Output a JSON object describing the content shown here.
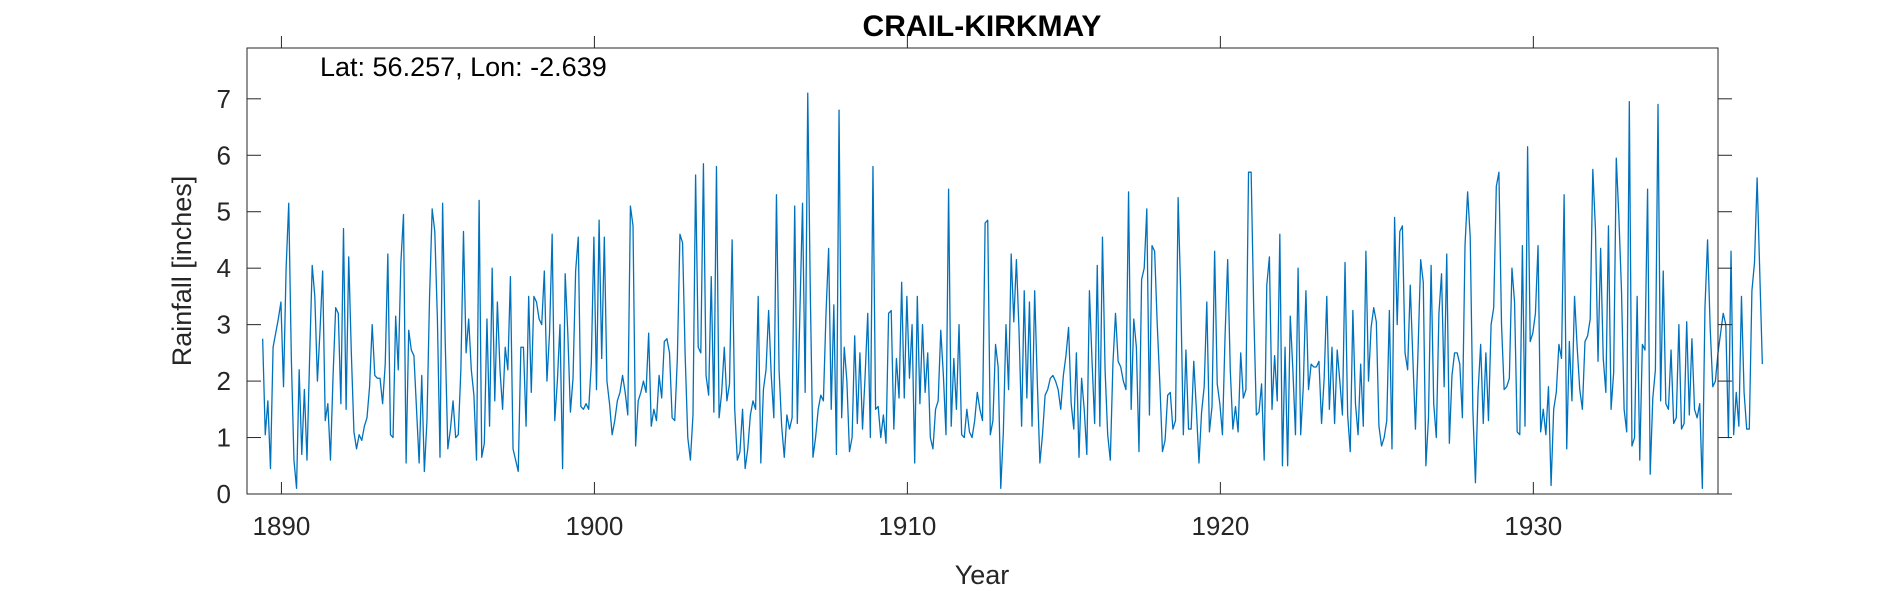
{
  "chart_data": {
    "type": "line",
    "title": "CRAIL-KIRKMAY",
    "annotation": "Lat: 56.257, Lon: -2.639",
    "xlabel": "Year",
    "ylabel": "Rainfall [inches]",
    "xlim": [
      1888.9,
      1935.9
    ],
    "ylim": [
      0,
      7.9
    ],
    "xticks": [
      1890,
      1900,
      1910,
      1920,
      1930
    ],
    "yticks": [
      0,
      1,
      2,
      3,
      4,
      5,
      6,
      7
    ],
    "grid": false,
    "series": [
      {
        "color": "#0072BD",
        "start_year": 1889.4,
        "step_years": 0.0833333,
        "values": [
          2.75,
          1.05,
          1.65,
          0.45,
          2.6,
          2.85,
          3.1,
          3.4,
          1.9,
          4.0,
          5.15,
          2.4,
          0.6,
          0.1,
          2.2,
          0.7,
          1.85,
          0.6,
          2.4,
          4.05,
          3.5,
          2.0,
          2.9,
          3.95,
          1.3,
          1.6,
          0.6,
          2.1,
          3.3,
          3.2,
          1.6,
          4.7,
          1.5,
          4.2,
          2.5,
          1.1,
          0.8,
          1.05,
          0.95,
          1.2,
          1.35,
          1.9,
          3.0,
          2.1,
          2.05,
          2.05,
          1.6,
          2.3,
          4.25,
          1.05,
          1.0,
          3.15,
          2.2,
          4.1,
          4.95,
          0.55,
          2.9,
          2.55,
          2.45,
          1.5,
          0.55,
          2.1,
          0.4,
          1.3,
          3.5,
          5.05,
          4.65,
          3.1,
          0.65,
          5.15,
          2.7,
          0.8,
          1.15,
          1.65,
          1.0,
          1.05,
          2.2,
          4.65,
          2.5,
          3.1,
          2.2,
          1.75,
          0.6,
          5.2,
          0.65,
          0.9,
          3.1,
          1.2,
          4.0,
          1.65,
          3.4,
          2.2,
          1.5,
          2.6,
          2.2,
          3.85,
          0.8,
          0.6,
          0.4,
          2.6,
          2.6,
          1.2,
          3.5,
          1.8,
          3.5,
          3.4,
          3.1,
          3.0,
          3.95,
          2.0,
          2.85,
          4.6,
          1.3,
          2.0,
          3.0,
          0.45,
          3.9,
          2.85,
          1.45,
          2.05,
          3.95,
          4.55,
          1.55,
          1.5,
          1.6,
          1.5,
          2.3,
          4.55,
          1.85,
          4.85,
          2.4,
          4.55,
          2.0,
          1.6,
          1.05,
          1.3,
          1.65,
          1.8,
          2.1,
          1.8,
          1.4,
          5.1,
          4.75,
          0.85,
          1.65,
          1.8,
          2.0,
          1.8,
          2.85,
          1.2,
          1.5,
          1.3,
          2.1,
          1.7,
          2.7,
          2.75,
          2.5,
          1.35,
          1.3,
          2.4,
          4.6,
          4.45,
          2.45,
          1.0,
          0.6,
          1.4,
          5.65,
          2.6,
          2.5,
          5.85,
          2.1,
          1.75,
          3.85,
          1.45,
          5.8,
          1.35,
          1.8,
          2.6,
          1.65,
          1.95,
          4.5,
          1.5,
          0.6,
          0.75,
          1.5,
          0.45,
          0.8,
          1.4,
          1.65,
          1.5,
          3.5,
          0.55,
          1.85,
          2.2,
          3.25,
          2.1,
          1.35,
          5.3,
          2.2,
          1.2,
          0.65,
          1.4,
          1.15,
          1.35,
          5.1,
          1.25,
          3.25,
          5.15,
          1.8,
          7.1,
          3.5,
          0.65,
          1.0,
          1.5,
          1.75,
          1.65,
          3.2,
          4.35,
          1.5,
          3.35,
          0.7,
          6.8,
          1.35,
          2.6,
          2.0,
          0.75,
          1.0,
          2.8,
          1.25,
          2.5,
          1.15,
          2.1,
          3.2,
          1.0,
          5.8,
          1.5,
          1.55,
          1.0,
          1.4,
          0.9,
          3.2,
          3.25,
          1.15,
          2.4,
          1.7,
          3.75,
          1.7,
          3.5,
          2.05,
          3.0,
          0.55,
          3.5,
          1.6,
          3.0,
          1.8,
          2.5,
          1.0,
          0.8,
          1.5,
          1.65,
          2.9,
          2.1,
          1.05,
          5.4,
          1.2,
          2.4,
          1.5,
          3.0,
          1.05,
          1.0,
          1.5,
          1.1,
          1.0,
          1.3,
          1.8,
          1.5,
          1.3,
          4.8,
          4.85,
          1.05,
          1.3,
          2.65,
          2.25,
          0.1,
          1.1,
          3.0,
          1.85,
          4.25,
          3.05,
          4.15,
          2.9,
          1.2,
          3.6,
          1.7,
          3.4,
          1.2,
          3.6,
          2.0,
          0.55,
          1.05,
          1.75,
          1.85,
          2.05,
          2.1,
          2.0,
          1.85,
          1.5,
          2.1,
          2.45,
          2.95,
          1.6,
          1.15,
          2.5,
          0.65,
          2.05,
          1.5,
          0.7,
          3.6,
          2.35,
          1.25,
          4.05,
          1.2,
          4.55,
          2.2,
          1.05,
          0.6,
          2.3,
          3.2,
          2.35,
          2.25,
          2.0,
          1.85,
          5.35,
          1.5,
          3.1,
          2.6,
          0.75,
          3.8,
          4.0,
          5.05,
          1.4,
          4.4,
          4.3,
          3.0,
          1.95,
          0.75,
          0.95,
          1.75,
          1.8,
          1.15,
          1.3,
          5.25,
          3.55,
          1.05,
          2.55,
          1.15,
          1.15,
          2.35,
          1.5,
          0.55,
          1.45,
          1.9,
          3.4,
          1.1,
          1.55,
          4.3,
          1.95,
          1.6,
          1.05,
          2.8,
          4.15,
          2.2,
          1.15,
          1.55,
          1.1,
          2.5,
          1.7,
          1.85,
          5.7,
          5.7,
          3.25,
          1.4,
          1.45,
          1.95,
          0.6,
          3.7,
          4.2,
          1.5,
          2.45,
          1.65,
          4.6,
          0.5,
          2.6,
          0.5,
          3.15,
          2.2,
          1.05,
          4.0,
          1.05,
          1.9,
          3.6,
          1.85,
          2.3,
          2.25,
          2.25,
          2.35,
          1.25,
          2.05,
          3.5,
          1.5,
          2.6,
          1.25,
          2.55,
          2.0,
          1.4,
          4.1,
          1.4,
          0.75,
          3.25,
          1.6,
          1.05,
          2.3,
          1.2,
          4.3,
          2.0,
          2.95,
          3.3,
          3.05,
          1.2,
          0.85,
          1.0,
          1.3,
          3.25,
          0.8,
          4.9,
          3.0,
          4.65,
          4.75,
          2.5,
          2.2,
          3.7,
          2.4,
          1.15,
          2.55,
          4.15,
          3.75,
          0.5,
          1.35,
          4.05,
          1.6,
          1.0,
          3.2,
          3.9,
          1.9,
          4.25,
          0.9,
          2.1,
          2.5,
          2.5,
          2.3,
          1.35,
          4.4,
          5.35,
          4.55,
          1.5,
          0.2,
          1.8,
          2.65,
          1.25,
          2.5,
          1.3,
          3.0,
          3.3,
          5.45,
          5.7,
          3.0,
          1.85,
          1.9,
          2.05,
          4.0,
          3.4,
          1.1,
          1.05,
          4.4,
          1.2,
          6.15,
          2.7,
          2.85,
          3.2,
          4.4,
          1.1,
          1.5,
          1.05,
          1.9,
          0.15,
          1.5,
          1.8,
          2.65,
          2.4,
          5.3,
          0.8,
          2.7,
          1.65,
          3.5,
          2.6,
          1.85,
          1.5,
          2.7,
          2.8,
          3.1,
          5.75,
          4.7,
          2.35,
          4.35,
          2.4,
          1.8,
          4.75,
          1.5,
          2.15,
          5.95,
          4.9,
          3.6,
          1.5,
          1.1,
          6.95,
          0.85,
          1.0,
          3.5,
          0.6,
          2.65,
          2.55,
          5.4,
          0.35,
          1.7,
          2.2,
          6.9,
          1.65,
          3.95,
          1.6,
          1.5,
          2.55,
          1.25,
          1.35,
          3.0,
          1.15,
          1.25,
          3.05,
          1.4,
          2.75,
          1.5,
          1.35,
          1.6,
          0.1,
          3.3,
          4.5,
          2.95,
          1.9,
          2.0,
          2.5,
          2.85,
          3.2,
          3.0,
          1.0,
          4.3,
          1.05,
          1.8,
          1.2,
          3.5,
          1.8,
          1.15,
          1.15,
          3.6,
          4.1,
          5.6,
          3.95,
          2.3
        ]
      }
    ]
  }
}
